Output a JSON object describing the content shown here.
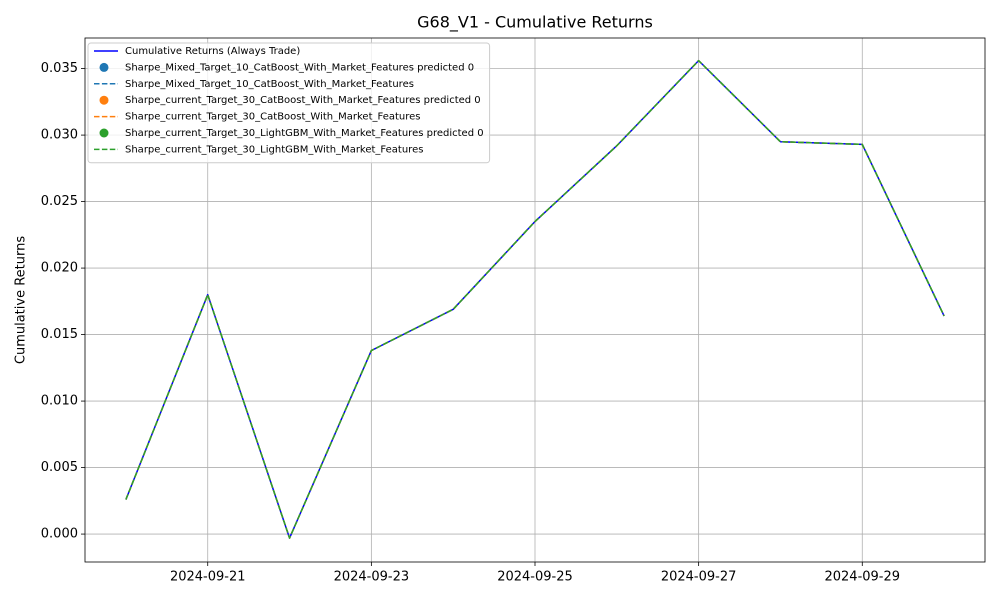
{
  "chart_data": {
    "type": "line",
    "title": "G68_V1 - Cumulative Returns",
    "ylabel": "Cumulative Returns",
    "x": [
      "2024-09-20",
      "2024-09-21",
      "2024-09-22",
      "2024-09-23",
      "2024-09-24",
      "2024-09-25",
      "2024-09-26",
      "2024-09-27",
      "2024-09-28",
      "2024-09-29",
      "2024-09-30"
    ],
    "series": [
      {
        "name": "Cumulative Returns (Always Trade)",
        "color": "#0000ff",
        "style": "solid",
        "values": [
          0.0026,
          0.018,
          -0.0003,
          0.0138,
          0.0169,
          0.0235,
          0.0292,
          0.0356,
          0.0295,
          0.0293,
          0.0164
        ]
      },
      {
        "name": "Sharpe_Mixed_Target_10_CatBoost_With_Market_Features predicted 0",
        "color": "#1f77b4",
        "style": "marker",
        "values": [
          null,
          null,
          null,
          null,
          null,
          null,
          null,
          null,
          null,
          null,
          null
        ]
      },
      {
        "name": "Sharpe_Mixed_Target_10_CatBoost_With_Market_Features",
        "color": "#1f77b4",
        "style": "dashed",
        "values": [
          0.0026,
          0.018,
          -0.0003,
          0.0138,
          0.0169,
          0.0235,
          0.0292,
          0.0356,
          0.0295,
          0.0293,
          0.0164
        ]
      },
      {
        "name": "Sharpe_current_Target_30_CatBoost_With_Market_Features predicted 0",
        "color": "#ff7f0e",
        "style": "marker",
        "values": [
          null,
          null,
          null,
          null,
          null,
          null,
          null,
          null,
          null,
          null,
          null
        ]
      },
      {
        "name": "Sharpe_current_Target_30_CatBoost_With_Market_Features",
        "color": "#ff7f0e",
        "style": "dashed",
        "values": [
          0.0026,
          0.018,
          -0.0003,
          0.0138,
          0.0169,
          0.0235,
          0.0292,
          0.0356,
          0.0295,
          0.0293,
          0.0164
        ]
      },
      {
        "name": "Sharpe_current_Target_30_LightGBM_With_Market_Features predicted 0",
        "color": "#2ca02c",
        "style": "marker",
        "values": [
          null,
          null,
          null,
          null,
          null,
          null,
          null,
          null,
          null,
          null,
          null
        ]
      },
      {
        "name": "Sharpe_current_Target_30_LightGBM_With_Market_Features",
        "color": "#2ca02c",
        "style": "dashed",
        "values": [
          0.0026,
          0.018,
          -0.0003,
          0.0138,
          0.0169,
          0.0235,
          0.0292,
          0.0356,
          0.0295,
          0.0293,
          0.0164
        ]
      }
    ],
    "xlim": [
      "2024-09-19T12:00",
      "2024-09-30T12:00"
    ],
    "xticks": [
      "2024-09-21",
      "2024-09-23",
      "2024-09-25",
      "2024-09-27",
      "2024-09-29"
    ],
    "ylim": [
      -0.0021,
      0.0373
    ],
    "yticks": [
      {
        "value": 0,
        "label": "0.000"
      },
      0.005,
      {
        "value": 0.01,
        "label": "0.010"
      },
      0.015,
      {
        "value": 0.02,
        "label": "0.020"
      },
      0.025,
      {
        "value": 0.03,
        "label": "0.030"
      },
      0.035
    ],
    "grid": true,
    "legend": "upper left"
  }
}
